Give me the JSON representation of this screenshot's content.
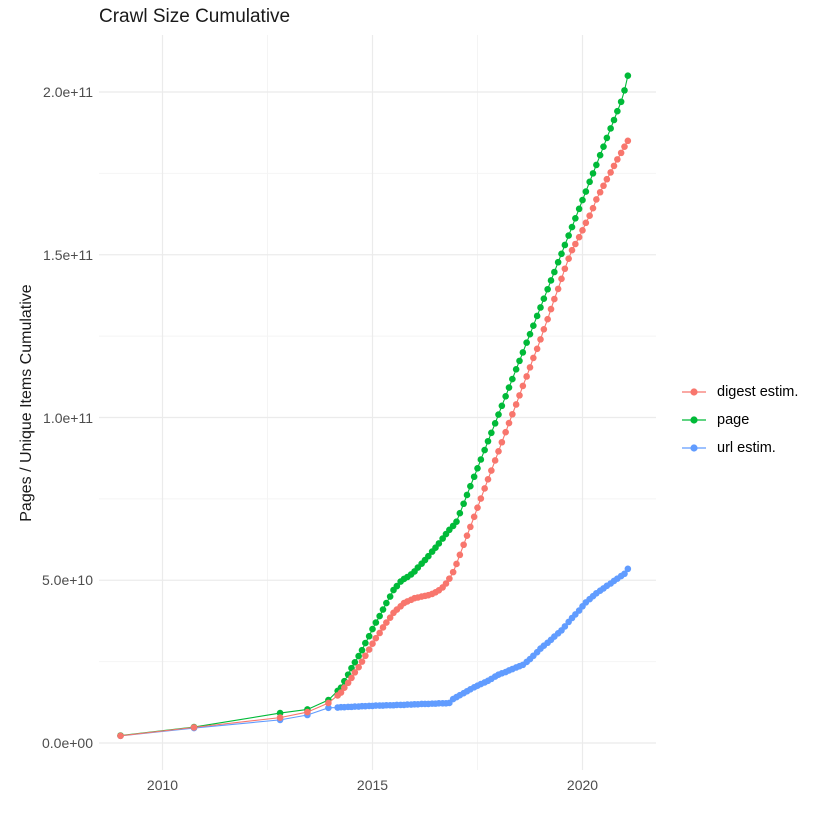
{
  "chart_data": {
    "type": "scatter",
    "title": "Crawl Size Cumulative",
    "xlabel": "",
    "ylabel": "Pages / Unique Items Cumulative",
    "values_unit": "billions (1e9)",
    "grid": "on",
    "legend_position": "right",
    "x_years": [
      2009.0,
      2010.75,
      2012.8,
      2013.45,
      2013.95,
      2014.17,
      2014.25,
      2014.33,
      2014.42,
      2014.5,
      2014.58,
      2014.67,
      2014.75,
      2014.83,
      2014.92,
      2015.0,
      2015.08,
      2015.17,
      2015.25,
      2015.33,
      2015.42,
      2015.5,
      2015.58,
      2015.67,
      2015.75,
      2015.83,
      2015.92,
      2016.0,
      2016.08,
      2016.17,
      2016.25,
      2016.33,
      2016.42,
      2016.5,
      2016.58,
      2016.67,
      2016.75,
      2016.83,
      2016.92,
      2017.0,
      2017.08,
      2017.17,
      2017.25,
      2017.33,
      2017.42,
      2017.5,
      2017.58,
      2017.67,
      2017.75,
      2017.83,
      2017.92,
      2018.0,
      2018.08,
      2018.17,
      2018.25,
      2018.33,
      2018.42,
      2018.5,
      2018.58,
      2018.67,
      2018.75,
      2018.83,
      2018.92,
      2019.0,
      2019.08,
      2019.17,
      2019.25,
      2019.33,
      2019.42,
      2019.5,
      2019.58,
      2019.67,
      2019.75,
      2019.83,
      2019.92,
      2020.0,
      2020.08,
      2020.17,
      2020.25,
      2020.33,
      2020.42,
      2020.5,
      2020.58,
      2020.67,
      2020.75,
      2020.83,
      2020.92,
      2021.0,
      2021.08
    ],
    "series": [
      {
        "name": "digest estim.",
        "color": "#F8766D",
        "values": [
          2.2,
          4.8,
          7.8,
          9.5,
          12.3,
          14.6,
          15.5,
          17.0,
          18.5,
          20.0,
          21.7,
          23.3,
          25.0,
          26.8,
          28.7,
          30.5,
          32.2,
          33.8,
          35.5,
          37.0,
          38.5,
          40.0,
          41.0,
          42.0,
          43.0,
          43.5,
          44.0,
          44.5,
          44.7,
          45.0,
          45.2,
          45.4,
          45.8,
          46.3,
          46.9,
          47.8,
          49.0,
          50.5,
          52.5,
          55.0,
          57.8,
          60.9,
          63.7,
          66.4,
          69.5,
          72.3,
          75.1,
          78.2,
          81.0,
          83.7,
          86.8,
          89.6,
          92.4,
          95.5,
          98.3,
          101.0,
          104.0,
          106.8,
          109.7,
          112.6,
          115.4,
          118.3,
          121.1,
          124.0,
          127.1,
          130.2,
          133.3,
          136.4,
          139.5,
          142.6,
          145.7,
          148.8,
          151.4,
          153.3,
          155.4,
          157.5,
          159.8,
          162.0,
          164.3,
          167.0,
          169.2,
          171.2,
          173.2,
          175.3,
          177.3,
          179.3,
          181.3,
          183.2,
          185.0
        ]
      },
      {
        "name": "page",
        "color": "#00BA38",
        "values": [
          2.3,
          4.9,
          9.2,
          10.3,
          13.2,
          16.0,
          17.0,
          19.0,
          21.0,
          23.0,
          24.8,
          26.7,
          28.5,
          30.7,
          32.8,
          35.0,
          37.0,
          39.0,
          41.0,
          43.0,
          45.0,
          47.0,
          48.2,
          49.6,
          50.4,
          51.0,
          51.8,
          52.7,
          53.9,
          55.1,
          56.2,
          57.4,
          58.8,
          60.0,
          61.3,
          62.8,
          64.2,
          65.5,
          66.7,
          68.0,
          70.6,
          73.5,
          76.2,
          78.9,
          81.8,
          84.4,
          87.1,
          90.0,
          92.7,
          95.3,
          98.2,
          100.9,
          103.6,
          106.5,
          109.2,
          111.8,
          114.8,
          117.4,
          120.0,
          123.0,
          125.6,
          128.2,
          131.2,
          133.8,
          136.5,
          139.4,
          142.1,
          144.7,
          147.7,
          150.3,
          153.0,
          155.9,
          158.5,
          161.2,
          164.1,
          166.8,
          169.4,
          172.4,
          175.0,
          177.6,
          180.6,
          183.2,
          185.9,
          188.8,
          191.4,
          194.1,
          197.0,
          200.5,
          205.0
        ]
      },
      {
        "name": "url estim.",
        "color": "#619CFF",
        "values": [
          2.2,
          4.6,
          7.1,
          8.6,
          10.8,
          10.9,
          11.0,
          11.0,
          11.1,
          11.1,
          11.2,
          11.2,
          11.3,
          11.3,
          11.4,
          11.4,
          11.5,
          11.5,
          11.5,
          11.6,
          11.6,
          11.6,
          11.7,
          11.7,
          11.7,
          11.8,
          11.8,
          11.9,
          11.9,
          12.0,
          12.0,
          12.0,
          12.1,
          12.1,
          12.2,
          12.2,
          12.2,
          12.3,
          13.5,
          14.1,
          14.7,
          15.3,
          15.9,
          16.5,
          17.1,
          17.6,
          18.1,
          18.6,
          19.1,
          19.7,
          20.4,
          21.0,
          21.4,
          21.8,
          22.3,
          22.7,
          23.2,
          23.6,
          24.0,
          24.9,
          25.8,
          26.8,
          27.9,
          29.0,
          29.9,
          30.8,
          31.7,
          32.7,
          33.7,
          34.6,
          35.8,
          37.2,
          38.4,
          39.5,
          40.7,
          42.0,
          43.2,
          44.2,
          45.1,
          46.0,
          46.8,
          47.5,
          48.3,
          49.0,
          49.8,
          50.5,
          51.3,
          52.0,
          53.5
        ]
      }
    ],
    "x_axis": {
      "major_ticks": [
        2010,
        2015,
        2020
      ],
      "major_labels": [
        "2010",
        "2015",
        "2020"
      ],
      "minor_ticks": [
        2012.5,
        2017.5
      ]
    },
    "y_axis": {
      "major_ticks_billions": [
        0,
        50,
        100,
        150,
        200
      ],
      "major_labels": [
        "0.0e+00",
        "5.0e+10",
        "1.0e+11",
        "1.5e+11",
        "2.0e+11"
      ],
      "minor_ticks_billions": [
        25,
        75,
        125,
        175
      ],
      "range_billions": [
        0,
        217
      ]
    },
    "colors": {
      "background": "#FFFFFF",
      "grid_major": "#EBEBEB",
      "grid_minor": "#F4F4F4",
      "tick_text": "#4D4D4D",
      "text": "#1A1A1A"
    }
  }
}
